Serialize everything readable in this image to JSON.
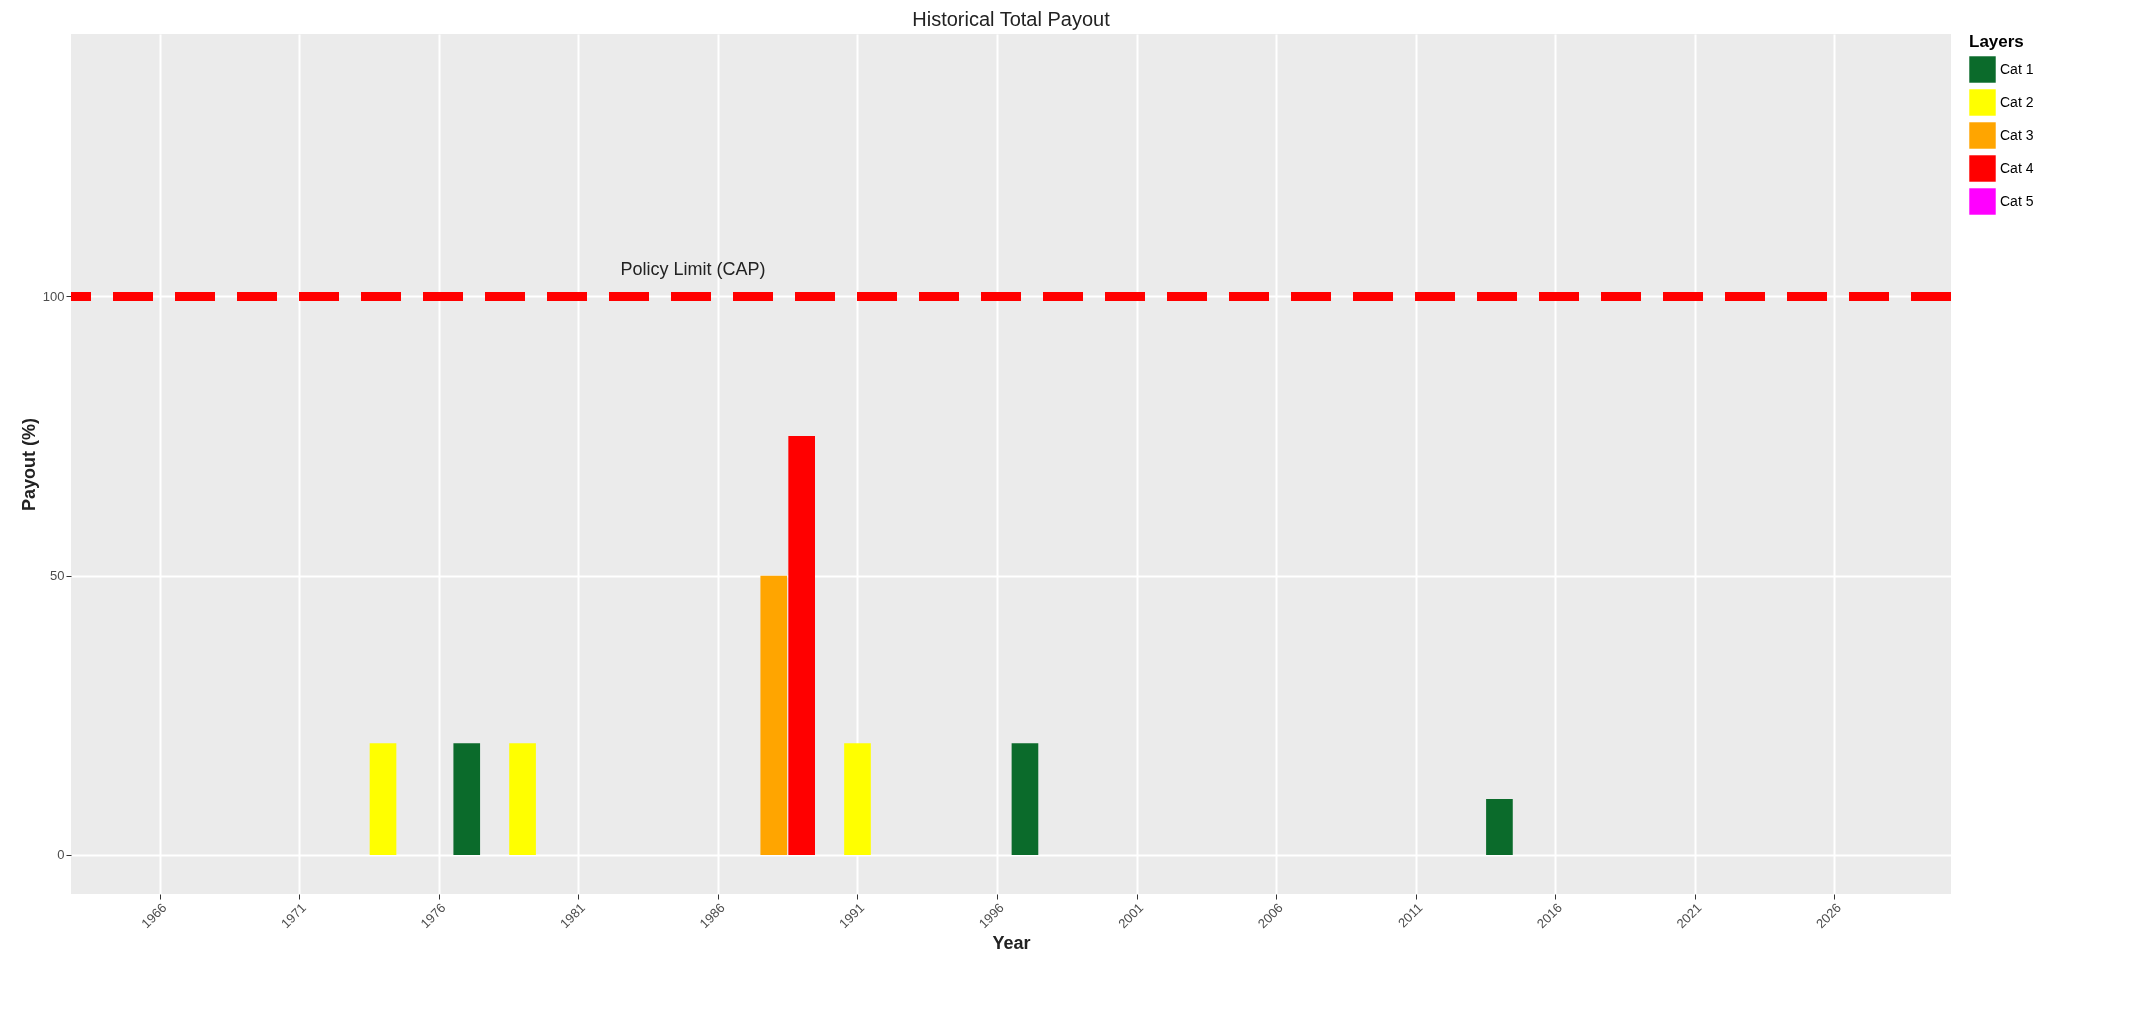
{
  "chart_data": {
    "type": "bar",
    "title": "Historical Total Payout",
    "xlabel": "Year",
    "ylabel": "Payout (%)",
    "legend_title": "Layers",
    "series": [
      {
        "name": "Cat 1",
        "color": "#0b6b2b",
        "x": [
          1977,
          1997,
          2014
        ],
        "values": [
          20,
          20,
          10
        ]
      },
      {
        "name": "Cat 2",
        "color": "#ffff00",
        "x": [
          1974,
          1979,
          1991
        ],
        "values": [
          20,
          20,
          20
        ]
      },
      {
        "name": "Cat 3",
        "color": "#ffa500",
        "x": [
          1988
        ],
        "values": [
          50
        ]
      },
      {
        "name": "Cat 4",
        "color": "#ff0000",
        "x": [
          1989
        ],
        "values": [
          75
        ]
      },
      {
        "name": "Cat 5",
        "color": "#ff00ff"
      }
    ],
    "xlim": [
      1963,
      2030
    ],
    "xticks": [
      1966,
      1971,
      1976,
      1981,
      1986,
      1991,
      1996,
      2001,
      2006,
      2011,
      2016,
      2021,
      2026
    ],
    "ylim": [
      -7,
      147
    ],
    "yticks": [
      0,
      50,
      100
    ],
    "ref_lines": [
      {
        "axis": "y",
        "value": 100,
        "label": "Policy Limit (CAP)",
        "color": "#ff0000",
        "line_style": "dashed"
      }
    ],
    "grid": true,
    "legend": "right"
  }
}
